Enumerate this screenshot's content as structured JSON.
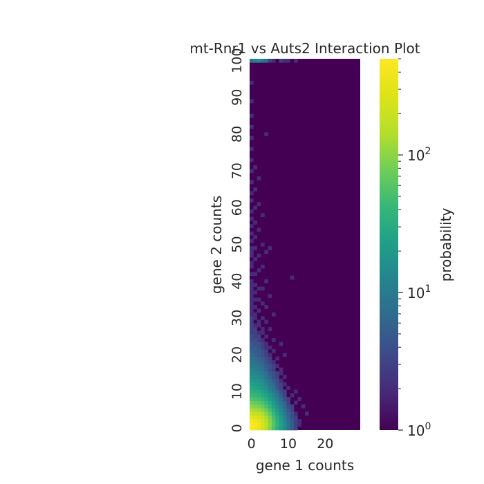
{
  "chart_data": {
    "type": "heatmap",
    "title": "mt-Rnr1 vs Auts2 Interaction Plot",
    "xlabel": "gene 1 counts",
    "ylabel": "gene 2 counts",
    "x_range": [
      0,
      29
    ],
    "y_range": [
      0,
      100
    ],
    "x_ticks": [
      "0",
      "10",
      "20"
    ],
    "y_ticks": [
      "0",
      "10",
      "20",
      "30",
      "40",
      "50",
      "60",
      "70",
      "80",
      "90",
      "100"
    ],
    "colorbar": {
      "label": "probability",
      "scale": "log",
      "range": [
        1,
        500
      ],
      "tick_labels": [
        {
          "base": "10",
          "exp": "0",
          "value": 1
        },
        {
          "base": "10",
          "exp": "1",
          "value": 10
        },
        {
          "base": "10",
          "exp": "2",
          "value": 100
        }
      ],
      "colormap": "viridis"
    },
    "background_value": 1,
    "cells": [
      [
        0,
        0,
        480
      ],
      [
        1,
        0,
        420
      ],
      [
        2,
        0,
        330
      ],
      [
        3,
        0,
        230
      ],
      [
        4,
        0,
        150
      ],
      [
        5,
        0,
        90
      ],
      [
        6,
        0,
        55
      ],
      [
        7,
        0,
        35
      ],
      [
        8,
        0,
        22
      ],
      [
        9,
        0,
        14
      ],
      [
        10,
        0,
        8
      ],
      [
        11,
        0,
        5
      ],
      [
        12,
        0,
        3
      ],
      [
        0,
        1,
        500
      ],
      [
        1,
        1,
        450
      ],
      [
        2,
        1,
        360
      ],
      [
        3,
        1,
        250
      ],
      [
        4,
        1,
        165
      ],
      [
        5,
        1,
        100
      ],
      [
        6,
        1,
        60
      ],
      [
        7,
        1,
        38
      ],
      [
        8,
        1,
        24
      ],
      [
        9,
        1,
        15
      ],
      [
        10,
        1,
        9
      ],
      [
        11,
        1,
        5
      ],
      [
        12,
        1,
        3
      ],
      [
        13,
        1,
        2
      ],
      [
        0,
        2,
        420
      ],
      [
        1,
        2,
        380
      ],
      [
        2,
        2,
        320
      ],
      [
        3,
        2,
        230
      ],
      [
        4,
        2,
        150
      ],
      [
        5,
        2,
        95
      ],
      [
        6,
        2,
        58
      ],
      [
        7,
        2,
        36
      ],
      [
        8,
        2,
        22
      ],
      [
        9,
        2,
        14
      ],
      [
        10,
        2,
        8
      ],
      [
        11,
        2,
        5
      ],
      [
        12,
        2,
        3
      ],
      [
        13,
        2,
        2
      ],
      [
        0,
        3,
        300
      ],
      [
        1,
        3,
        280
      ],
      [
        2,
        3,
        250
      ],
      [
        3,
        3,
        190
      ],
      [
        4,
        3,
        130
      ],
      [
        5,
        3,
        85
      ],
      [
        6,
        3,
        52
      ],
      [
        7,
        3,
        32
      ],
      [
        8,
        3,
        20
      ],
      [
        9,
        3,
        12
      ],
      [
        10,
        3,
        7
      ],
      [
        11,
        3,
        4
      ],
      [
        12,
        3,
        3
      ],
      [
        0,
        4,
        200
      ],
      [
        1,
        4,
        190
      ],
      [
        2,
        4,
        175
      ],
      [
        3,
        4,
        140
      ],
      [
        4,
        4,
        100
      ],
      [
        5,
        4,
        66
      ],
      [
        6,
        4,
        42
      ],
      [
        7,
        4,
        26
      ],
      [
        8,
        4,
        16
      ],
      [
        9,
        4,
        10
      ],
      [
        10,
        4,
        6
      ],
      [
        11,
        4,
        4
      ],
      [
        12,
        4,
        2
      ],
      [
        15,
        4,
        2
      ],
      [
        0,
        5,
        140
      ],
      [
        1,
        5,
        130
      ],
      [
        2,
        5,
        120
      ],
      [
        3,
        5,
        100
      ],
      [
        4,
        5,
        75
      ],
      [
        5,
        5,
        50
      ],
      [
        6,
        5,
        33
      ],
      [
        7,
        5,
        21
      ],
      [
        8,
        5,
        13
      ],
      [
        9,
        5,
        8
      ],
      [
        10,
        5,
        5
      ],
      [
        11,
        5,
        3
      ],
      [
        0,
        6,
        100
      ],
      [
        1,
        6,
        92
      ],
      [
        2,
        6,
        85
      ],
      [
        3,
        6,
        72
      ],
      [
        4,
        6,
        55
      ],
      [
        5,
        6,
        38
      ],
      [
        6,
        6,
        26
      ],
      [
        7,
        6,
        17
      ],
      [
        8,
        6,
        11
      ],
      [
        9,
        6,
        7
      ],
      [
        10,
        6,
        4
      ],
      [
        11,
        6,
        3
      ],
      [
        14,
        6,
        2
      ],
      [
        0,
        7,
        75
      ],
      [
        1,
        7,
        70
      ],
      [
        2,
        7,
        64
      ],
      [
        3,
        7,
        54
      ],
      [
        4,
        7,
        42
      ],
      [
        5,
        7,
        30
      ],
      [
        6,
        7,
        21
      ],
      [
        7,
        7,
        14
      ],
      [
        8,
        7,
        9
      ],
      [
        9,
        7,
        6
      ],
      [
        10,
        7,
        3
      ],
      [
        12,
        7,
        2
      ],
      [
        0,
        8,
        55
      ],
      [
        1,
        8,
        52
      ],
      [
        2,
        8,
        48
      ],
      [
        3,
        8,
        41
      ],
      [
        4,
        8,
        32
      ],
      [
        5,
        8,
        23
      ],
      [
        6,
        8,
        16
      ],
      [
        7,
        8,
        11
      ],
      [
        8,
        8,
        7
      ],
      [
        9,
        8,
        4
      ],
      [
        10,
        8,
        3
      ],
      [
        13,
        8,
        2
      ],
      [
        0,
        9,
        42
      ],
      [
        1,
        9,
        40
      ],
      [
        2,
        9,
        37
      ],
      [
        3,
        9,
        31
      ],
      [
        4,
        9,
        25
      ],
      [
        5,
        9,
        18
      ],
      [
        6,
        9,
        13
      ],
      [
        7,
        9,
        9
      ],
      [
        8,
        9,
        5
      ],
      [
        9,
        9,
        3
      ],
      [
        11,
        9,
        2
      ],
      [
        0,
        10,
        34
      ],
      [
        1,
        10,
        32
      ],
      [
        2,
        10,
        30
      ],
      [
        3,
        10,
        25
      ],
      [
        4,
        10,
        20
      ],
      [
        5,
        10,
        14
      ],
      [
        6,
        10,
        10
      ],
      [
        7,
        10,
        7
      ],
      [
        8,
        10,
        4
      ],
      [
        9,
        10,
        3
      ],
      [
        12,
        10,
        2
      ],
      [
        0,
        11,
        28
      ],
      [
        1,
        11,
        26
      ],
      [
        2,
        11,
        24
      ],
      [
        3,
        11,
        20
      ],
      [
        4,
        11,
        16
      ],
      [
        5,
        11,
        11
      ],
      [
        6,
        11,
        8
      ],
      [
        7,
        11,
        5
      ],
      [
        8,
        11,
        3
      ],
      [
        10,
        11,
        2
      ],
      [
        0,
        12,
        24
      ],
      [
        1,
        12,
        22
      ],
      [
        2,
        12,
        20
      ],
      [
        3,
        12,
        17
      ],
      [
        4,
        12,
        13
      ],
      [
        5,
        12,
        9
      ],
      [
        6,
        12,
        7
      ],
      [
        7,
        12,
        4
      ],
      [
        8,
        12,
        3
      ],
      [
        9,
        12,
        2
      ],
      [
        0,
        13,
        20
      ],
      [
        1,
        13,
        18
      ],
      [
        2,
        13,
        17
      ],
      [
        3,
        13,
        14
      ],
      [
        4,
        13,
        11
      ],
      [
        5,
        13,
        8
      ],
      [
        6,
        13,
        5
      ],
      [
        7,
        13,
        4
      ],
      [
        8,
        13,
        2
      ],
      [
        0,
        14,
        17
      ],
      [
        1,
        14,
        16
      ],
      [
        2,
        14,
        14
      ],
      [
        3,
        14,
        12
      ],
      [
        4,
        14,
        9
      ],
      [
        5,
        14,
        6
      ],
      [
        6,
        14,
        4
      ],
      [
        7,
        14,
        3
      ],
      [
        9,
        14,
        2
      ],
      [
        0,
        15,
        14
      ],
      [
        1,
        15,
        13
      ],
      [
        2,
        15,
        12
      ],
      [
        3,
        15,
        10
      ],
      [
        4,
        15,
        8
      ],
      [
        5,
        15,
        5
      ],
      [
        6,
        15,
        4
      ],
      [
        7,
        15,
        3
      ],
      [
        8,
        15,
        2
      ],
      [
        0,
        16,
        12
      ],
      [
        1,
        16,
        11
      ],
      [
        2,
        16,
        10
      ],
      [
        3,
        16,
        8
      ],
      [
        4,
        16,
        6
      ],
      [
        5,
        16,
        4
      ],
      [
        6,
        16,
        3
      ],
      [
        8,
        16,
        2
      ],
      [
        0,
        17,
        10
      ],
      [
        1,
        17,
        10
      ],
      [
        2,
        17,
        9
      ],
      [
        3,
        17,
        7
      ],
      [
        4,
        17,
        5
      ],
      [
        5,
        17,
        4
      ],
      [
        6,
        17,
        3
      ],
      [
        7,
        17,
        2
      ],
      [
        0,
        18,
        9
      ],
      [
        1,
        18,
        8
      ],
      [
        2,
        18,
        7
      ],
      [
        3,
        18,
        6
      ],
      [
        4,
        18,
        4
      ],
      [
        5,
        18,
        3
      ],
      [
        6,
        18,
        2
      ],
      [
        0,
        19,
        8
      ],
      [
        1,
        19,
        7
      ],
      [
        2,
        19,
        6
      ],
      [
        3,
        19,
        5
      ],
      [
        4,
        19,
        4
      ],
      [
        5,
        19,
        3
      ],
      [
        7,
        19,
        2
      ],
      [
        0,
        20,
        7
      ],
      [
        1,
        20,
        6
      ],
      [
        2,
        20,
        5
      ],
      [
        3,
        20,
        4
      ],
      [
        4,
        20,
        3
      ],
      [
        5,
        20,
        2
      ],
      [
        9,
        20,
        2
      ],
      [
        0,
        21,
        6
      ],
      [
        1,
        21,
        5
      ],
      [
        2,
        21,
        5
      ],
      [
        3,
        21,
        4
      ],
      [
        4,
        21,
        3
      ],
      [
        6,
        21,
        2
      ],
      [
        0,
        22,
        5
      ],
      [
        1,
        22,
        5
      ],
      [
        2,
        22,
        4
      ],
      [
        3,
        22,
        3
      ],
      [
        4,
        22,
        2
      ],
      [
        5,
        22,
        2
      ],
      [
        0,
        23,
        5
      ],
      [
        1,
        23,
        4
      ],
      [
        2,
        23,
        4
      ],
      [
        3,
        23,
        3
      ],
      [
        4,
        23,
        2
      ],
      [
        8,
        23,
        2
      ],
      [
        0,
        24,
        4
      ],
      [
        1,
        24,
        4
      ],
      [
        2,
        24,
        3
      ],
      [
        3,
        24,
        2
      ],
      [
        6,
        24,
        2
      ],
      [
        0,
        25,
        4
      ],
      [
        1,
        25,
        3
      ],
      [
        2,
        25,
        3
      ],
      [
        4,
        25,
        2
      ],
      [
        0,
        26,
        3
      ],
      [
        1,
        26,
        3
      ],
      [
        2,
        26,
        2
      ],
      [
        3,
        26,
        2
      ],
      [
        0,
        27,
        3
      ],
      [
        1,
        27,
        3
      ],
      [
        3,
        27,
        2
      ],
      [
        5,
        27,
        2
      ],
      [
        0,
        28,
        3
      ],
      [
        1,
        28,
        2
      ],
      [
        2,
        28,
        2
      ],
      [
        0,
        29,
        3
      ],
      [
        2,
        29,
        2
      ],
      [
        4,
        29,
        2
      ],
      [
        0,
        30,
        3
      ],
      [
        1,
        30,
        2
      ],
      [
        3,
        30,
        2
      ],
      [
        0,
        31,
        2
      ],
      [
        1,
        31,
        2
      ],
      [
        6,
        31,
        2
      ],
      [
        0,
        32,
        2
      ],
      [
        2,
        32,
        2
      ],
      [
        0,
        33,
        2
      ],
      [
        1,
        33,
        2
      ],
      [
        4,
        33,
        2
      ],
      [
        0,
        34,
        2
      ],
      [
        3,
        34,
        2
      ],
      [
        0,
        35,
        2
      ],
      [
        1,
        35,
        2
      ],
      [
        2,
        35,
        2
      ],
      [
        0,
        36,
        2
      ],
      [
        5,
        36,
        2
      ],
      [
        0,
        37,
        2
      ],
      [
        1,
        37,
        2
      ],
      [
        0,
        38,
        2
      ],
      [
        2,
        38,
        2
      ],
      [
        3,
        38,
        2
      ],
      [
        0,
        39,
        2
      ],
      [
        1,
        39,
        2
      ],
      [
        0,
        40,
        2
      ],
      [
        4,
        40,
        2
      ],
      [
        11,
        41,
        2
      ],
      [
        0,
        42,
        2
      ],
      [
        1,
        42,
        2
      ],
      [
        2,
        43,
        2
      ],
      [
        0,
        44,
        2
      ],
      [
        3,
        44,
        2
      ],
      [
        0,
        45,
        2
      ],
      [
        1,
        46,
        2
      ],
      [
        0,
        47,
        2
      ],
      [
        2,
        47,
        2
      ],
      [
        0,
        48,
        2
      ],
      [
        4,
        48,
        2
      ],
      [
        0,
        49,
        2
      ],
      [
        1,
        49,
        2
      ],
      [
        5,
        49,
        2
      ],
      [
        3,
        50,
        2
      ],
      [
        0,
        51,
        2
      ],
      [
        1,
        52,
        2
      ],
      [
        0,
        53,
        2
      ],
      [
        2,
        54,
        2
      ],
      [
        0,
        55,
        2
      ],
      [
        1,
        56,
        2
      ],
      [
        0,
        57,
        2
      ],
      [
        3,
        58,
        2
      ],
      [
        0,
        59,
        2
      ],
      [
        1,
        60,
        2
      ],
      [
        2,
        61,
        2
      ],
      [
        0,
        62,
        2
      ],
      [
        0,
        64,
        2
      ],
      [
        1,
        65,
        2
      ],
      [
        0,
        67,
        2
      ],
      [
        2,
        68,
        2
      ],
      [
        0,
        70,
        2
      ],
      [
        1,
        71,
        2
      ],
      [
        0,
        73,
        2
      ],
      [
        0,
        76,
        2
      ],
      [
        0,
        79,
        2
      ],
      [
        4,
        80,
        2
      ],
      [
        0,
        82,
        2
      ],
      [
        0,
        85,
        2
      ],
      [
        0,
        89,
        2
      ],
      [
        0,
        94,
        2
      ],
      [
        0,
        100,
        8
      ],
      [
        1,
        100,
        12
      ],
      [
        2,
        100,
        14
      ],
      [
        3,
        100,
        10
      ],
      [
        4,
        100,
        8
      ],
      [
        5,
        100,
        3
      ],
      [
        6,
        100,
        2
      ],
      [
        8,
        100,
        3
      ],
      [
        9,
        100,
        2
      ],
      [
        10,
        100,
        2
      ],
      [
        12,
        100,
        2
      ]
    ]
  }
}
